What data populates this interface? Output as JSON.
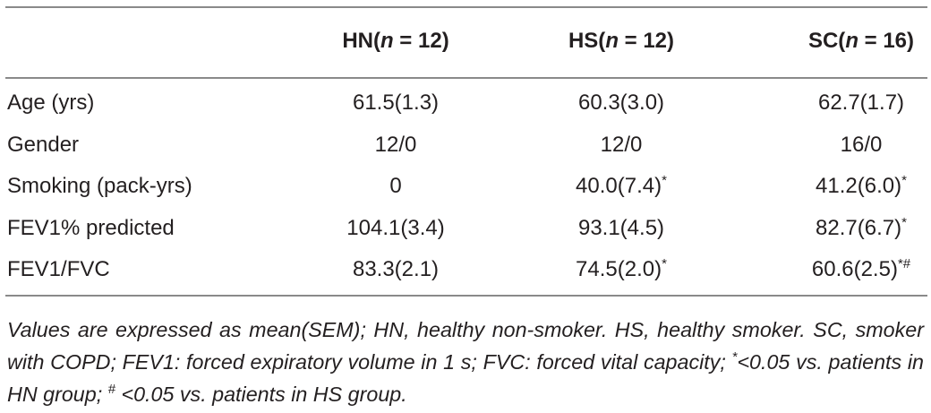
{
  "table": {
    "header": [
      [
        {
          "bold": "HN("
        },
        {
          "bolditalic": "n"
        },
        {
          "bold": " = 12)"
        }
      ],
      [
        {
          "bold": "HS("
        },
        {
          "bolditalic": "n"
        },
        {
          "bold": " = 12)"
        }
      ],
      [
        {
          "bold": "SC("
        },
        {
          "bolditalic": "n"
        },
        {
          "bold": " = 16)"
        }
      ]
    ],
    "rows": [
      {
        "label": "Age (yrs)",
        "cells": [
          [
            {
              "text": "61.5(1.3)"
            }
          ],
          [
            {
              "text": "60.3(3.0)"
            }
          ],
          [
            {
              "text": "62.7(1.7)"
            }
          ]
        ]
      },
      {
        "label": "Gender",
        "cells": [
          [
            {
              "text": "12/0"
            }
          ],
          [
            {
              "text": "12/0"
            }
          ],
          [
            {
              "text": "16/0"
            }
          ]
        ]
      },
      {
        "label": "Smoking (pack-yrs)",
        "cells": [
          [
            {
              "text": "0"
            }
          ],
          [
            {
              "text": "40.0(7.4)"
            },
            {
              "sup": "*"
            }
          ],
          [
            {
              "text": "41.2(6.0)"
            },
            {
              "sup": "*"
            }
          ]
        ]
      },
      {
        "label": "FEV1% predicted",
        "cells": [
          [
            {
              "text": "104.1(3.4)"
            }
          ],
          [
            {
              "text": "93.1(4.5)"
            }
          ],
          [
            {
              "text": "82.7(6.7)"
            },
            {
              "sup": "*"
            }
          ]
        ]
      },
      {
        "label": "FEV1/FVC",
        "cells": [
          [
            {
              "text": "83.3(2.1)"
            }
          ],
          [
            {
              "text": "74.5(2.0)"
            },
            {
              "sup": "*"
            }
          ],
          [
            {
              "text": "60.6(2.5)"
            },
            {
              "sup": "*#"
            }
          ]
        ]
      }
    ],
    "footnote": [
      {
        "text": "Values are expressed as mean(SEM); HN, healthy non-smoker. HS, healthy smoker. SC, smoker with COPD; FEV1: forced expiratory volume in 1 s; FVC: forced vital capacity; "
      },
      {
        "sup": "*"
      },
      {
        "text": "<0.05 vs. patients in HN group; "
      },
      {
        "sup": "#"
      },
      {
        "text": " <0.05 vs. patients in HS group."
      }
    ]
  }
}
